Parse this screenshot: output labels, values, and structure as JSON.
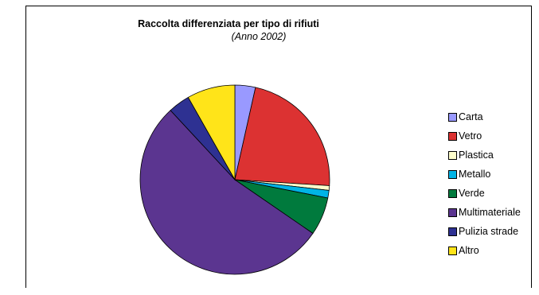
{
  "chart_data": {
    "type": "pie",
    "title": "Raccolta differenziata per tipo di rifiuti",
    "subtitle": "(Anno 2002)",
    "legend_position": "right",
    "categories": [
      "Carta",
      "Vetro",
      "Plastica",
      "Metallo",
      "Verde",
      "Multimateriale",
      "Pulizia strade",
      "Altro"
    ],
    "values": [
      3.5,
      22.5,
      0.8,
      1.3,
      6.5,
      53.5,
      3.7,
      8.2
    ],
    "colors": [
      "#9999ff",
      "#dc3232",
      "#ffffcc",
      "#00b4e6",
      "#007a3d",
      "#5b3590",
      "#2e3192",
      "#ffe419"
    ]
  }
}
